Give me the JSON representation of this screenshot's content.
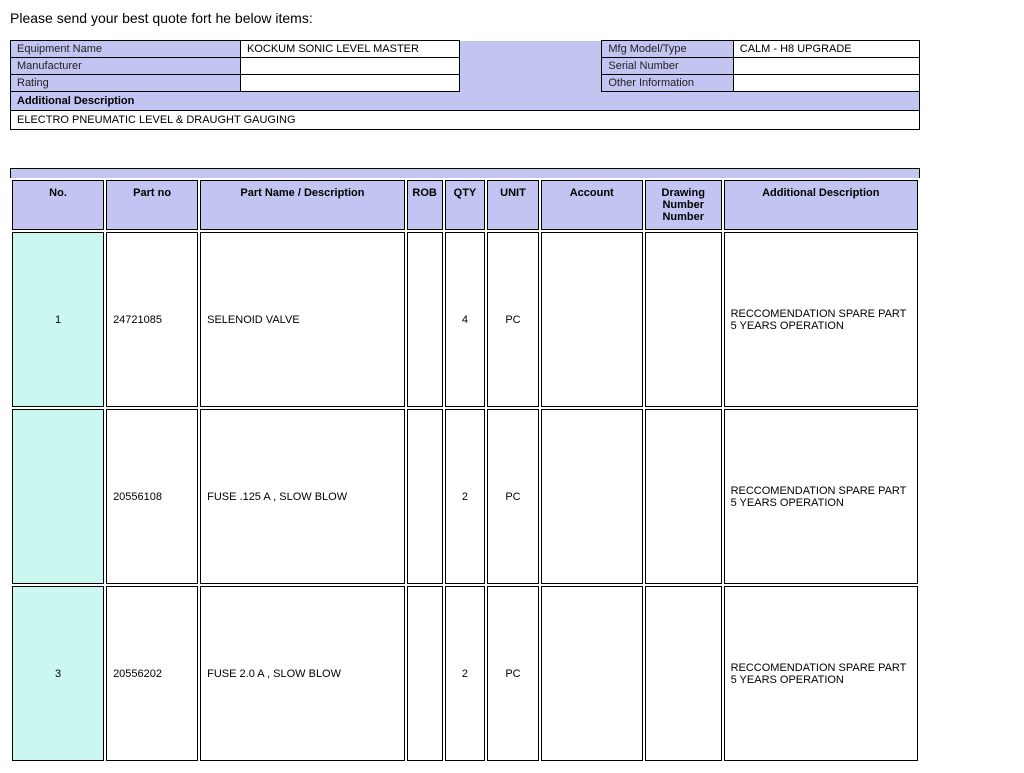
{
  "title": "Please send your best quote fort he below items:",
  "colors": {
    "header_bg": "#c2c4f2",
    "mint_bg": "#caf7f0",
    "white": "#ffffff",
    "border": "#000000"
  },
  "info": {
    "labels": {
      "equip_name": "Equipment Name",
      "manufacturer": "Manufacturer",
      "rating": "Rating",
      "mfg_model": "Mfg Model/Type",
      "serial": "Serial Number",
      "other": "Other Information"
    },
    "values": {
      "equip_name": "KOCKUM SONIC LEVEL MASTER",
      "manufacturer": "",
      "rating": "",
      "mfg_model": "CALM - H8 UPGRADE",
      "serial": "",
      "other": ""
    }
  },
  "additional": {
    "label": "Additional Description",
    "value": "ELECTRO PNEUMATIC LEVEL & DRAUGHT GAUGING"
  },
  "table": {
    "columns": [
      "No.",
      "Part no",
      "Part Name / Description",
      "ROB",
      "QTY",
      "UNIT",
      "Account",
      "Drawing Number Number",
      "Additional Description"
    ],
    "rows": [
      {
        "no": "1",
        "part": "24721085",
        "name": "SELENOID VALVE",
        "rob": "",
        "qty": "4",
        "unit": "PC",
        "account": "",
        "draw": "",
        "add": "RECCOMENDATION SPARE PART 5 YEARS OPERATION"
      },
      {
        "no": "",
        "part": "20556108",
        "name": "FUSE .125 A , SLOW BLOW",
        "rob": "",
        "qty": "2",
        "unit": "PC",
        "account": "",
        "draw": "",
        "add": "RECCOMENDATION SPARE PART 5 YEARS OPERATION"
      },
      {
        "no": "3",
        "part": "20556202",
        "name": "FUSE 2.0 A , SLOW BLOW",
        "rob": "",
        "qty": "2",
        "unit": "PC",
        "account": "",
        "draw": "",
        "add": "RECCOMENDATION SPARE PART 5 YEARS OPERATION"
      }
    ]
  }
}
